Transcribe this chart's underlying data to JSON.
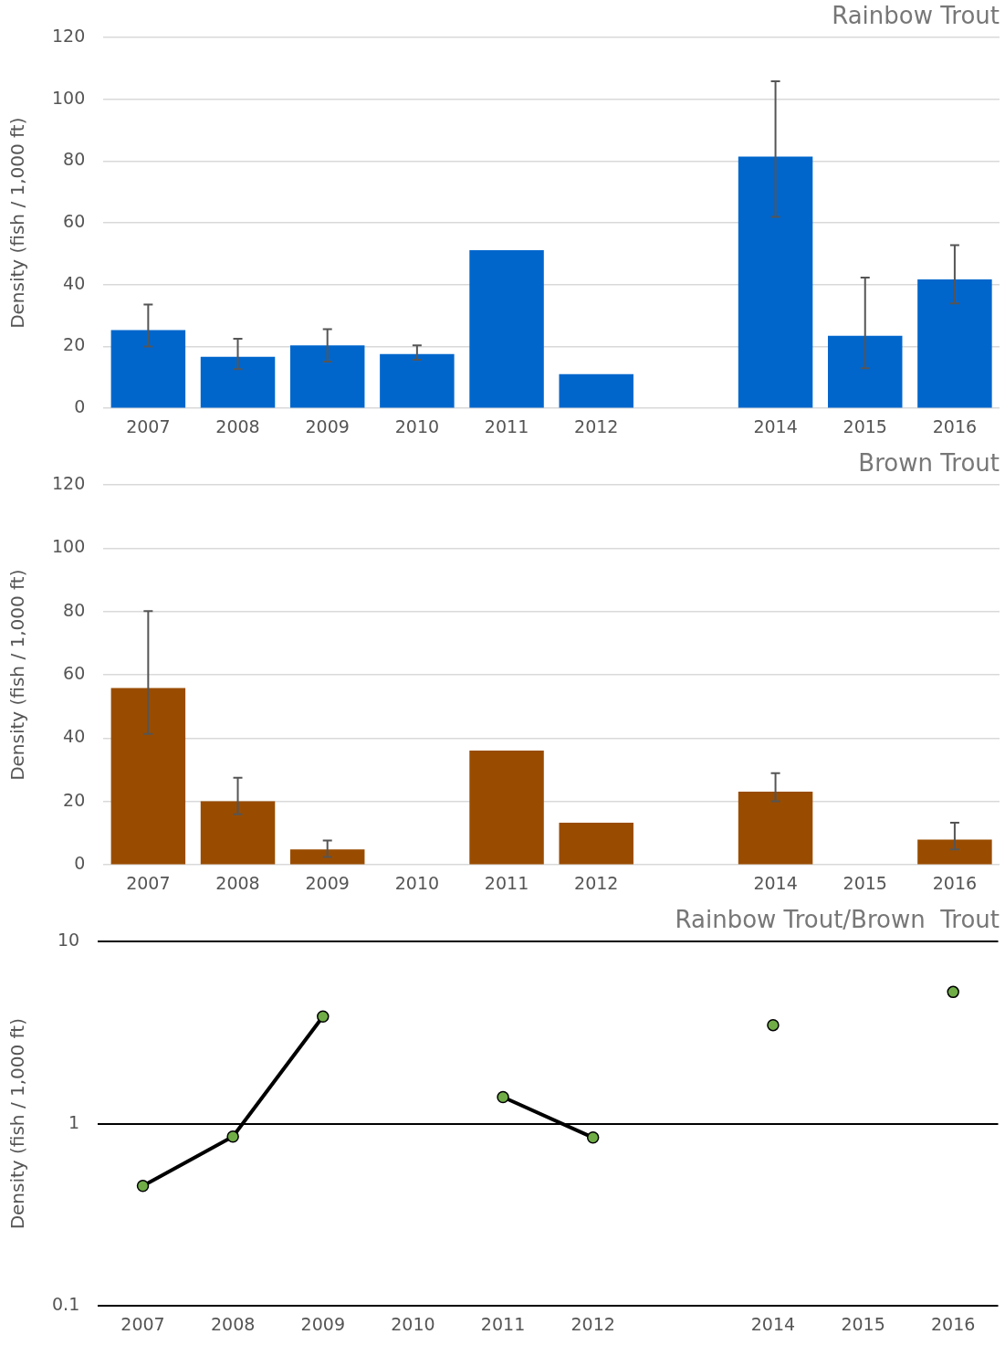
{
  "chart_data": [
    {
      "type": "bar",
      "title": "Rainbow Trout",
      "ylabel": "Density (fish / 1,000 ft)",
      "categories": [
        "2007",
        "2008",
        "2009",
        "2010",
        "2011",
        "2012",
        null,
        "2014",
        "2015",
        "2016"
      ],
      "series": [
        {
          "color": "#0066cc",
          "values": [
            25.3,
            16.7,
            20.4,
            17.6,
            51.2,
            11.1,
            null,
            81.5,
            23.5,
            41.7
          ],
          "errors": [
            [
              20,
              33.6
            ],
            [
              12.7,
              22.5
            ],
            [
              15.1,
              25.6
            ],
            [
              15.7,
              20.4
            ],
            null,
            null,
            null,
            [
              62,
              105.9
            ],
            [
              13,
              42.3
            ],
            [
              34,
              52.8
            ]
          ]
        }
      ],
      "ylim": [
        0,
        120
      ],
      "yticks": [
        0,
        20,
        40,
        60,
        80,
        100,
        120
      ],
      "grid": "y"
    },
    {
      "type": "bar",
      "title": "Brown Trout",
      "ylabel": "Density (fish / 1,000 ft)",
      "categories": [
        "2007",
        "2008",
        "2009",
        "2010",
        "2011",
        "2012",
        null,
        "2014",
        "2015",
        "2016"
      ],
      "series": [
        {
          "color": "#994c00",
          "values": [
            55.9,
            20.1,
            4.9,
            null,
            36.1,
            13.3,
            null,
            23.1,
            null,
            8
          ],
          "errors": [
            [
              41.4,
              80.2
            ],
            [
              16,
              27.5
            ],
            [
              2.5,
              7.7
            ],
            null,
            null,
            null,
            null,
            [
              20.1,
              29
            ],
            null,
            [
              4.9,
              13.3
            ]
          ]
        }
      ],
      "ylim": [
        0,
        120
      ],
      "yticks": [
        0,
        20,
        40,
        60,
        80,
        100,
        120
      ],
      "grid": "y"
    },
    {
      "type": "line",
      "title": "Rainbow Trout/Brown  Trout",
      "ylabel": "Density (fish / 1,000 ft)",
      "categories": [
        "2007",
        "2008",
        "2009",
        "2010",
        "2011",
        "2012",
        null,
        "2014",
        "2015",
        "2016"
      ],
      "series": [
        {
          "color": "#70ad47",
          "values": [
            0.456,
            0.85,
            3.88,
            null,
            1.4,
            0.84,
            null,
            3.48,
            null,
            5.29
          ]
        }
      ],
      "ylim": [
        0.1,
        10
      ],
      "yticks": [
        0.1,
        1,
        10
      ],
      "log": true,
      "grid": "y",
      "marker": "circle",
      "line_style": "solid"
    }
  ]
}
